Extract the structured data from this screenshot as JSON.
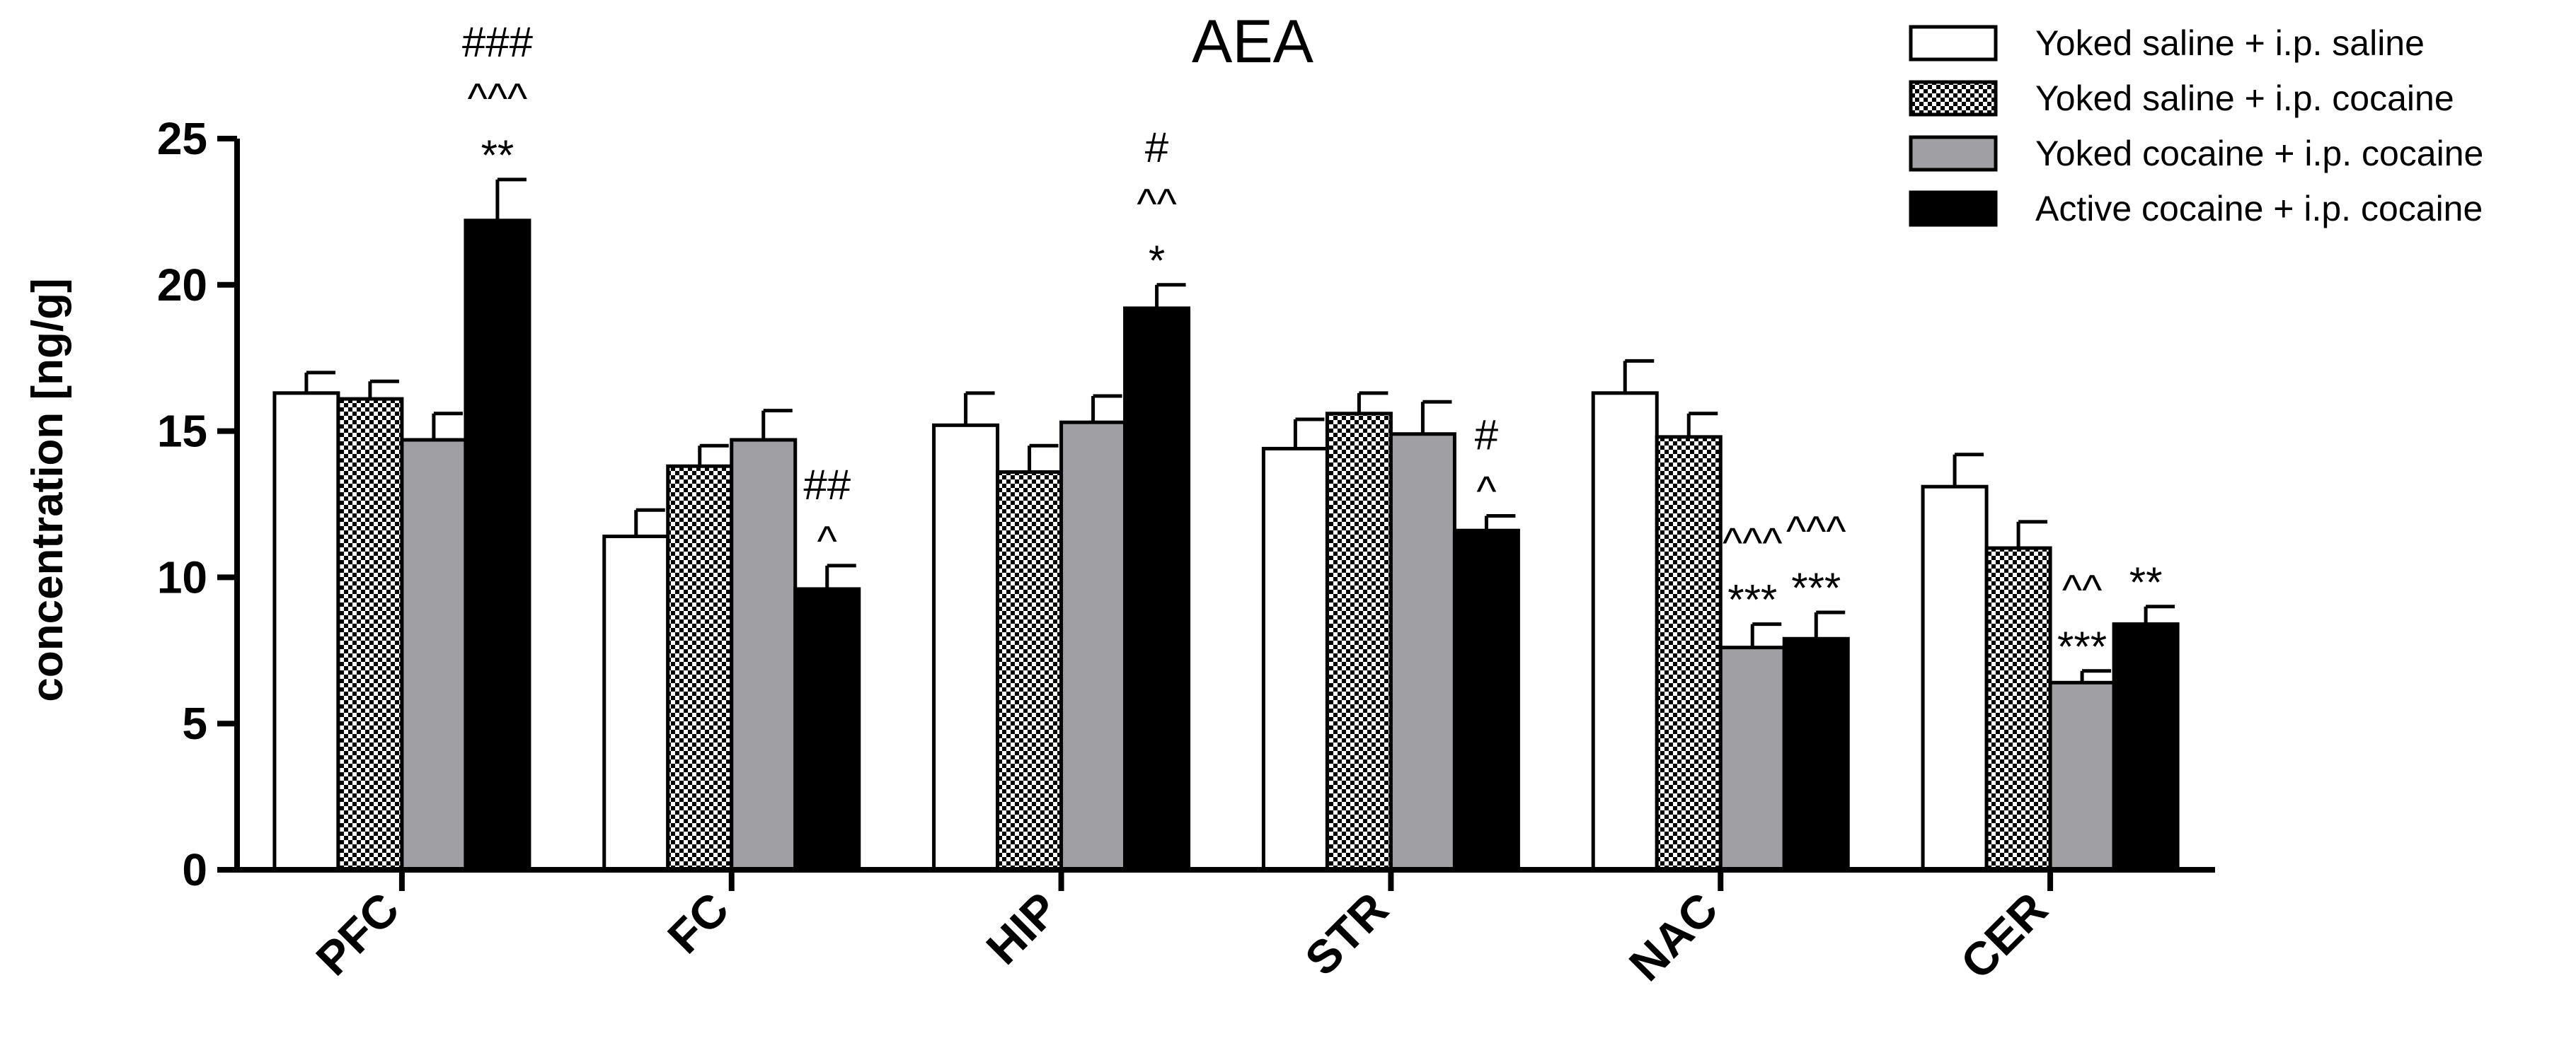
{
  "chart_data": {
    "type": "bar",
    "title": "AEA",
    "xlabel": "",
    "ylabel": "concentration [ng/g]",
    "ylim": [
      0,
      25
    ],
    "yticks": [
      "0",
      "5",
      "10",
      "15",
      "20",
      "25"
    ],
    "categories": [
      "PFC",
      "FC",
      "HIP",
      "STR",
      "NAC",
      "CER"
    ],
    "legend_position": "top-right",
    "series": [
      {
        "name": "Yoked saline + i.p. saline",
        "fill": "white",
        "values": [
          16.3,
          11.4,
          15.2,
          14.4,
          16.3,
          13.1
        ],
        "errors": [
          0.7,
          0.9,
          1.1,
          1.0,
          1.1,
          1.1
        ]
      },
      {
        "name": "Yoked saline + i.p. cocaine",
        "fill": "checker",
        "values": [
          16.1,
          13.8,
          13.6,
          15.6,
          14.8,
          11.0
        ],
        "errors": [
          0.6,
          0.7,
          0.9,
          0.7,
          0.8,
          0.9
        ]
      },
      {
        "name": "Yoked cocaine + i.p. cocaine",
        "fill": "gray",
        "values": [
          14.7,
          14.7,
          15.3,
          14.9,
          7.6,
          6.4
        ],
        "errors": [
          0.9,
          1.0,
          0.9,
          1.1,
          0.8,
          0.4
        ]
      },
      {
        "name": "Active cocaine + i.p. cocaine",
        "fill": "black",
        "values": [
          22.2,
          9.6,
          19.2,
          11.6,
          7.9,
          8.4
        ],
        "errors": [
          1.4,
          0.8,
          0.8,
          0.5,
          0.9,
          0.6
        ]
      }
    ],
    "annotations": [
      {
        "category": 0,
        "series": 3,
        "lines": [
          "###",
          "^^^",
          "**"
        ]
      },
      {
        "category": 1,
        "series": 3,
        "lines": [
          "##",
          "^"
        ]
      },
      {
        "category": 2,
        "series": 3,
        "lines": [
          "#",
          "^^",
          "*"
        ]
      },
      {
        "category": 3,
        "series": 3,
        "lines": [
          "#",
          "^"
        ]
      },
      {
        "category": 4,
        "series": 2,
        "lines": [
          "^^^",
          "***"
        ]
      },
      {
        "category": 4,
        "series": 3,
        "lines": [
          "^^^",
          "***"
        ]
      },
      {
        "category": 5,
        "series": 2,
        "lines": [
          "^^",
          "***"
        ]
      },
      {
        "category": 5,
        "series": 3,
        "lines": [
          "**"
        ]
      }
    ]
  }
}
